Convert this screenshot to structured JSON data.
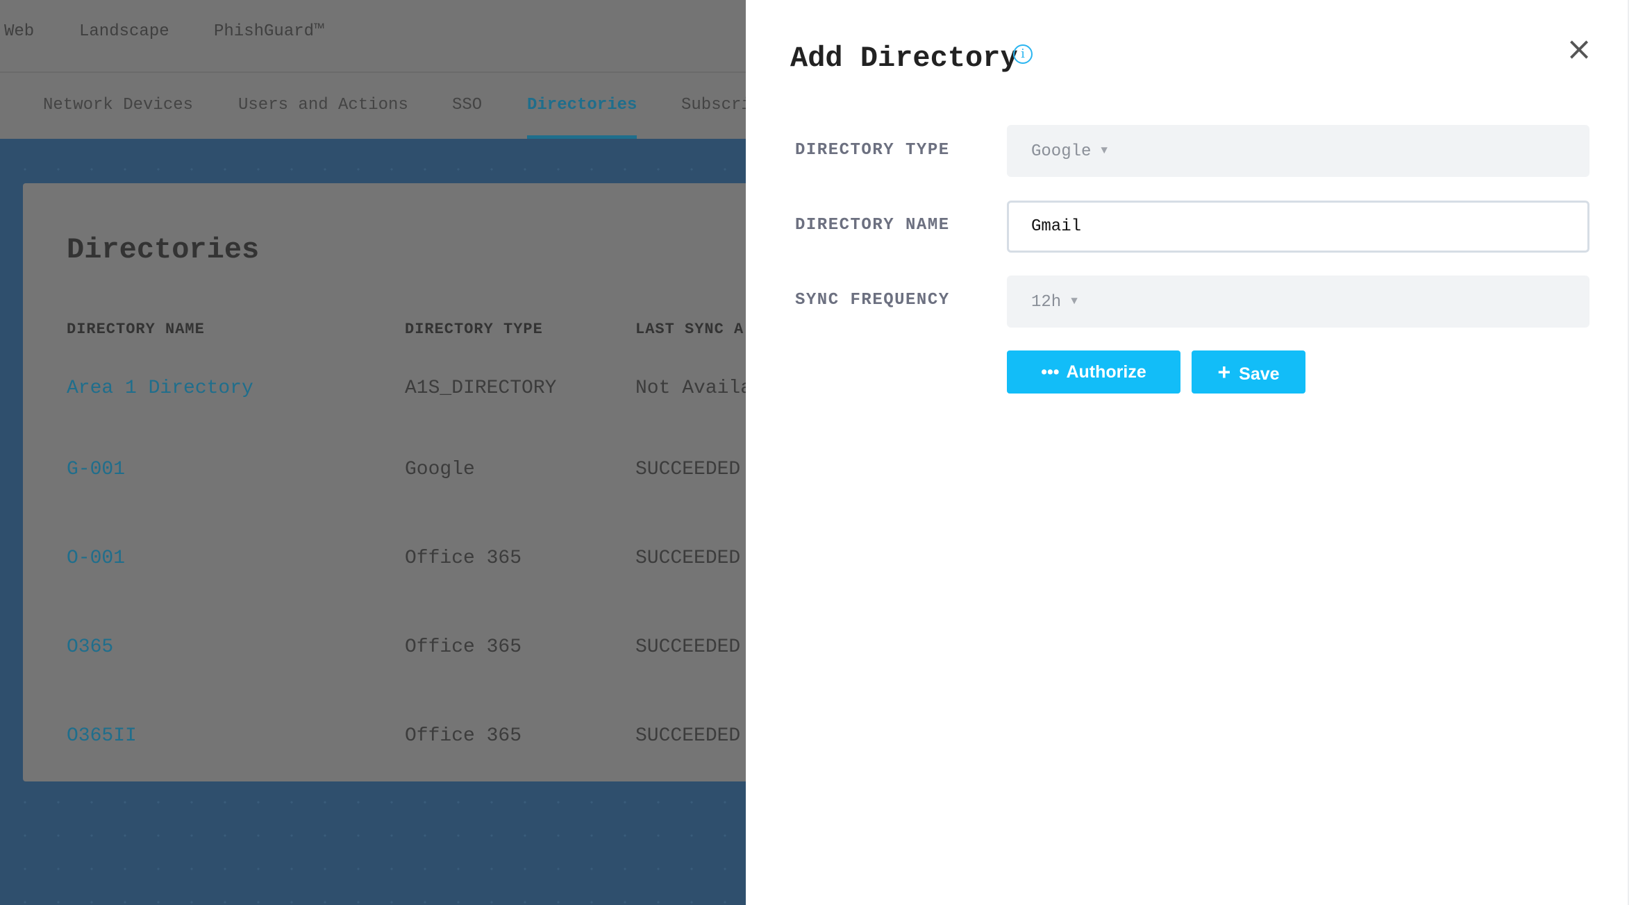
{
  "top_nav": {
    "items": [
      "Web",
      "Landscape",
      "PhishGuard™"
    ]
  },
  "tabs": {
    "items": [
      "Network Devices",
      "Users and Actions",
      "SSO",
      "Directories",
      "Subscri"
    ],
    "active": "Directories"
  },
  "directories_card": {
    "title": "Directories",
    "columns": [
      "DIRECTORY NAME",
      "DIRECTORY TYPE",
      "LAST SYNC A"
    ],
    "rows": [
      {
        "name": "Area 1 Directory",
        "type": "A1S_DIRECTORY",
        "last_sync": "Not Availa"
      },
      {
        "name": "G-001",
        "type": "Google",
        "last_sync": "SUCCEEDED"
      },
      {
        "name": "O-001",
        "type": "Office 365",
        "last_sync": "SUCCEEDED"
      },
      {
        "name": "O365",
        "type": "Office 365",
        "last_sync": "SUCCEEDED"
      },
      {
        "name": "O365II",
        "type": "Office 365",
        "last_sync": "SUCCEEDED"
      }
    ]
  },
  "panel": {
    "title": "Add Directory",
    "info_icon": "i",
    "close_icon": "×",
    "fields": {
      "directory_type": {
        "label": "DIRECTORY TYPE",
        "value": "Google"
      },
      "directory_name": {
        "label": "DIRECTORY NAME",
        "value": "Gmail"
      },
      "sync_frequency": {
        "label": "SYNC FREQUENCY",
        "value": "12h"
      }
    },
    "caret": "▼",
    "authorize": {
      "icon": "•••",
      "label": "Authorize"
    },
    "save": {
      "icon": "+",
      "label": "Save"
    }
  },
  "colors": {
    "accent": "#12bdf8",
    "overlay": "#747474",
    "background_blue": "#2f4f6d",
    "link": "#1f6e8c"
  }
}
